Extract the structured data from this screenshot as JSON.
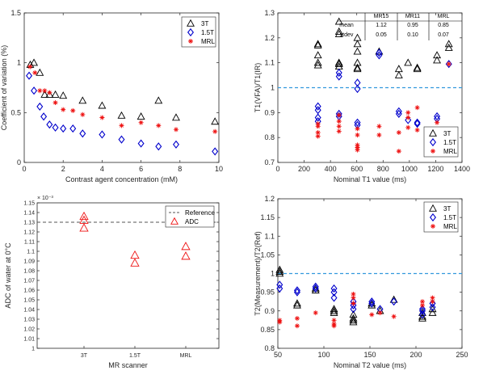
{
  "colors": {
    "3T": "#000000",
    "1.5T": "#0000cc",
    "MRL": "#ee1111",
    "ADC": "#ee1111",
    "reference": "#555555",
    "unity": "#3399dd",
    "axis": "#262626"
  },
  "chart_data": [
    {
      "id": "cov",
      "type": "scatter",
      "xlabel": "Contrast agent concentration (mM)",
      "ylabel": "Coefficient of variation (%)",
      "xlim": [
        0,
        10
      ],
      "ylim": [
        0,
        1.5
      ],
      "xticks": [
        0,
        2,
        4,
        6,
        8,
        10
      ],
      "yticks": [
        0,
        0.5,
        1,
        1.5
      ],
      "legend_position": "top-right",
      "series": [
        {
          "name": "3T",
          "marker": "triangle",
          "color": "#000000",
          "points": [
            [
              0.31,
              0.98
            ],
            [
              0.5,
              1.0
            ],
            [
              0.8,
              0.9
            ],
            [
              1.05,
              0.68
            ],
            [
              1.3,
              0.68
            ],
            [
              1.6,
              0.68
            ],
            [
              2.0,
              0.67
            ],
            [
              3.0,
              0.62
            ],
            [
              4.0,
              0.57
            ],
            [
              5.0,
              0.47
            ],
            [
              6.0,
              0.46
            ],
            [
              6.9,
              0.62
            ],
            [
              7.8,
              0.45
            ],
            [
              9.8,
              0.41
            ]
          ]
        },
        {
          "name": "1.5T",
          "marker": "diamond",
          "color": "#0000cc",
          "points": [
            [
              0.25,
              0.87
            ],
            [
              0.5,
              0.72
            ],
            [
              0.8,
              0.56
            ],
            [
              1.0,
              0.46
            ],
            [
              1.3,
              0.38
            ],
            [
              1.6,
              0.35
            ],
            [
              2.0,
              0.34
            ],
            [
              2.5,
              0.34
            ],
            [
              3.0,
              0.29
            ],
            [
              4.0,
              0.28
            ],
            [
              5.0,
              0.23
            ],
            [
              6.0,
              0.19
            ],
            [
              6.9,
              0.16
            ],
            [
              7.8,
              0.18
            ],
            [
              9.8,
              0.11
            ]
          ]
        },
        {
          "name": "MRL",
          "marker": "asterisk",
          "color": "#ee1111",
          "points": [
            [
              0.3,
              0.96
            ],
            [
              0.55,
              0.9
            ],
            [
              0.8,
              0.72
            ],
            [
              1.05,
              0.72
            ],
            [
              1.3,
              0.7
            ],
            [
              1.6,
              0.6
            ],
            [
              2.0,
              0.53
            ],
            [
              2.5,
              0.52
            ],
            [
              3.0,
              0.48
            ],
            [
              4.0,
              0.45
            ],
            [
              5.0,
              0.37
            ],
            [
              6.0,
              0.4
            ],
            [
              6.9,
              0.37
            ],
            [
              7.8,
              0.33
            ],
            [
              9.8,
              0.31
            ]
          ]
        }
      ]
    },
    {
      "id": "t1",
      "type": "scatter",
      "xlabel": "Nominal T1 value (ms)",
      "ylabel": "T1(VFA)/T1(IR)",
      "xlim": [
        0,
        1400
      ],
      "ylim": [
        0.7,
        1.3
      ],
      "xticks": [
        0,
        200,
        400,
        600,
        800,
        1000,
        1200,
        1400
      ],
      "yticks": [
        0.7,
        0.8,
        0.9,
        1,
        1.1,
        1.2,
        1.3
      ],
      "reference_line": 1.0,
      "legend_position": "right",
      "table": {
        "columns": [
          "",
          "MR15",
          "MR11",
          "MRL"
        ],
        "rows": [
          [
            "mean",
            "1.12",
            "0.95",
            "0.85"
          ],
          [
            "stdev",
            "0.05",
            "0.10",
            "0.07"
          ]
        ]
      },
      "series": [
        {
          "name": "3T",
          "marker": "triangle",
          "color": "#000000",
          "points": [
            [
              305,
              1.175
            ],
            [
              305,
              1.17
            ],
            [
              305,
              1.13
            ],
            [
              305,
              1.1
            ],
            [
              305,
              1.09
            ],
            [
              465,
              1.265
            ],
            [
              465,
              1.225
            ],
            [
              465,
              1.215
            ],
            [
              465,
              1.1
            ],
            [
              465,
              1.095
            ],
            [
              465,
              1.085
            ],
            [
              605,
              1.2
            ],
            [
              605,
              1.175
            ],
            [
              605,
              1.145
            ],
            [
              605,
              1.1
            ],
            [
              605,
              1.08
            ],
            [
              605,
              1.075
            ],
            [
              770,
              1.145
            ],
            [
              920,
              1.075
            ],
            [
              920,
              1.05
            ],
            [
              990,
              1.1
            ],
            [
              1060,
              1.08
            ],
            [
              1060,
              1.075
            ],
            [
              1210,
              1.13
            ],
            [
              1210,
              1.11
            ],
            [
              1300,
              1.175
            ],
            [
              1300,
              1.16
            ]
          ]
        },
        {
          "name": "1.5T",
          "marker": "diamond",
          "color": "#0000cc",
          "points": [
            [
              305,
              0.925
            ],
            [
              305,
              0.91
            ],
            [
              305,
              0.88
            ],
            [
              305,
              0.865
            ],
            [
              465,
              1.06
            ],
            [
              465,
              1.045
            ],
            [
              465,
              0.895
            ],
            [
              465,
              0.885
            ],
            [
              605,
              1.02
            ],
            [
              605,
              0.995
            ],
            [
              605,
              0.86
            ],
            [
              605,
              0.85
            ],
            [
              770,
              1.14
            ],
            [
              770,
              1.13
            ],
            [
              920,
              0.905
            ],
            [
              920,
              0.895
            ],
            [
              990,
              0.87
            ],
            [
              1060,
              0.86
            ],
            [
              1060,
              0.855
            ],
            [
              1210,
              0.885
            ],
            [
              1210,
              0.875
            ],
            [
              1300,
              1.095
            ]
          ]
        },
        {
          "name": "MRL",
          "marker": "asterisk",
          "color": "#ee1111",
          "points": [
            [
              305,
              0.855
            ],
            [
              305,
              0.845
            ],
            [
              305,
              0.82
            ],
            [
              305,
              0.805
            ],
            [
              465,
              0.89
            ],
            [
              465,
              0.865
            ],
            [
              465,
              0.845
            ],
            [
              465,
              0.825
            ],
            [
              605,
              0.835
            ],
            [
              605,
              0.81
            ],
            [
              605,
              0.77
            ],
            [
              605,
              0.76
            ],
            [
              605,
              0.75
            ],
            [
              770,
              0.845
            ],
            [
              770,
              0.81
            ],
            [
              920,
              0.82
            ],
            [
              920,
              0.745
            ],
            [
              990,
              0.9
            ],
            [
              990,
              0.88
            ],
            [
              990,
              0.84
            ],
            [
              1060,
              0.92
            ],
            [
              1060,
              0.83
            ],
            [
              1210,
              0.86
            ],
            [
              1210,
              0.81
            ],
            [
              1300,
              1.095
            ]
          ]
        }
      ]
    },
    {
      "id": "adc",
      "type": "scatter",
      "ylabel": "ADC of water at 0°C",
      "xlabel": "MR scanner",
      "categories": [
        "3T",
        "1.5T",
        "MRL"
      ],
      "ylim": [
        1.0,
        1.15
      ],
      "yticks": [
        "1",
        "1.01",
        "1.02",
        "1.03",
        "1.04",
        "1.05",
        "1.06",
        "1.07",
        "1.08",
        "1.09",
        "1.1",
        "1.11",
        "1.12",
        "1.13",
        "1.14",
        "1.15"
      ],
      "y_exponent": "× 10⁻³",
      "reference_line": 1.13,
      "legend_position": "top-right",
      "legend": [
        {
          "name": "Reference",
          "style": "dashed"
        },
        {
          "name": "ADC",
          "marker": "triangle"
        }
      ],
      "series": [
        {
          "name": "ADC",
          "marker": "triangle",
          "color": "#ee1111",
          "points": [
            [
              "3T",
              1.136
            ],
            [
              "3T",
              1.132
            ],
            [
              "3T",
              1.124
            ],
            [
              "1.5T",
              1.096
            ],
            [
              "1.5T",
              1.088
            ],
            [
              "MRL",
              1.105
            ],
            [
              "MRL",
              1.095
            ]
          ]
        }
      ]
    },
    {
      "id": "t2",
      "type": "scatter",
      "xlabel": "Nominal T2 value (ms)",
      "ylabel": "T2(Measurement)/T2(Ref)",
      "xlim": [
        50,
        250
      ],
      "ylim": [
        0.8,
        1.2
      ],
      "xticks": [
        50,
        100,
        150,
        200,
        250
      ],
      "yticks": [
        0.8,
        0.85,
        0.9,
        0.95,
        1,
        1.05,
        1.1,
        1.15,
        1.2
      ],
      "reference_line": 1.0,
      "legend_position": "top-right",
      "series": [
        {
          "name": "3T",
          "marker": "triangle",
          "color": "#000000",
          "points": [
            [
              52,
              1.01
            ],
            [
              52,
              1.005
            ],
            [
              52,
              1.0
            ],
            [
              71,
              0.92
            ],
            [
              71,
              0.915
            ],
            [
              91,
              0.96
            ],
            [
              91,
              0.955
            ],
            [
              111,
              0.905
            ],
            [
              111,
              0.9
            ],
            [
              111,
              0.895
            ],
            [
              132,
              0.89
            ],
            [
              132,
              0.88
            ],
            [
              132,
              0.875
            ],
            [
              132,
              0.87
            ],
            [
              152,
              0.92
            ],
            [
              152,
              0.915
            ],
            [
              161,
              0.9
            ],
            [
              176,
              0.93
            ],
            [
              207,
              0.895
            ],
            [
              207,
              0.885
            ],
            [
              207,
              0.88
            ],
            [
              218,
              0.905
            ],
            [
              218,
              0.895
            ]
          ]
        },
        {
          "name": "1.5T",
          "marker": "diamond",
          "color": "#0000cc",
          "points": [
            [
              52,
              0.97
            ],
            [
              52,
              0.96
            ],
            [
              71,
              0.955
            ],
            [
              71,
              0.95
            ],
            [
              91,
              0.965
            ],
            [
              91,
              0.96
            ],
            [
              111,
              0.96
            ],
            [
              111,
              0.95
            ],
            [
              111,
              0.935
            ],
            [
              132,
              0.925
            ],
            [
              132,
              0.915
            ],
            [
              132,
              0.905
            ],
            [
              152,
              0.925
            ],
            [
              152,
              0.92
            ],
            [
              161,
              0.905
            ],
            [
              176,
              0.925
            ],
            [
              207,
              0.905
            ],
            [
              207,
              0.9
            ],
            [
              207,
              0.89
            ],
            [
              218,
              0.92
            ],
            [
              218,
              0.91
            ]
          ]
        },
        {
          "name": "MRL",
          "marker": "asterisk",
          "color": "#ee1111",
          "points": [
            [
              52,
              0.875
            ],
            [
              52,
              0.87
            ],
            [
              71,
              0.88
            ],
            [
              71,
              0.86
            ],
            [
              91,
              0.895
            ],
            [
              111,
              0.875
            ],
            [
              111,
              0.865
            ],
            [
              111,
              0.86
            ],
            [
              132,
              0.945
            ],
            [
              132,
              0.935
            ],
            [
              132,
              0.92
            ],
            [
              152,
              0.89
            ],
            [
              161,
              0.895
            ],
            [
              176,
              0.885
            ],
            [
              207,
              0.925
            ],
            [
              207,
              0.915
            ],
            [
              218,
              0.935
            ],
            [
              218,
              0.925
            ]
          ]
        }
      ]
    }
  ]
}
